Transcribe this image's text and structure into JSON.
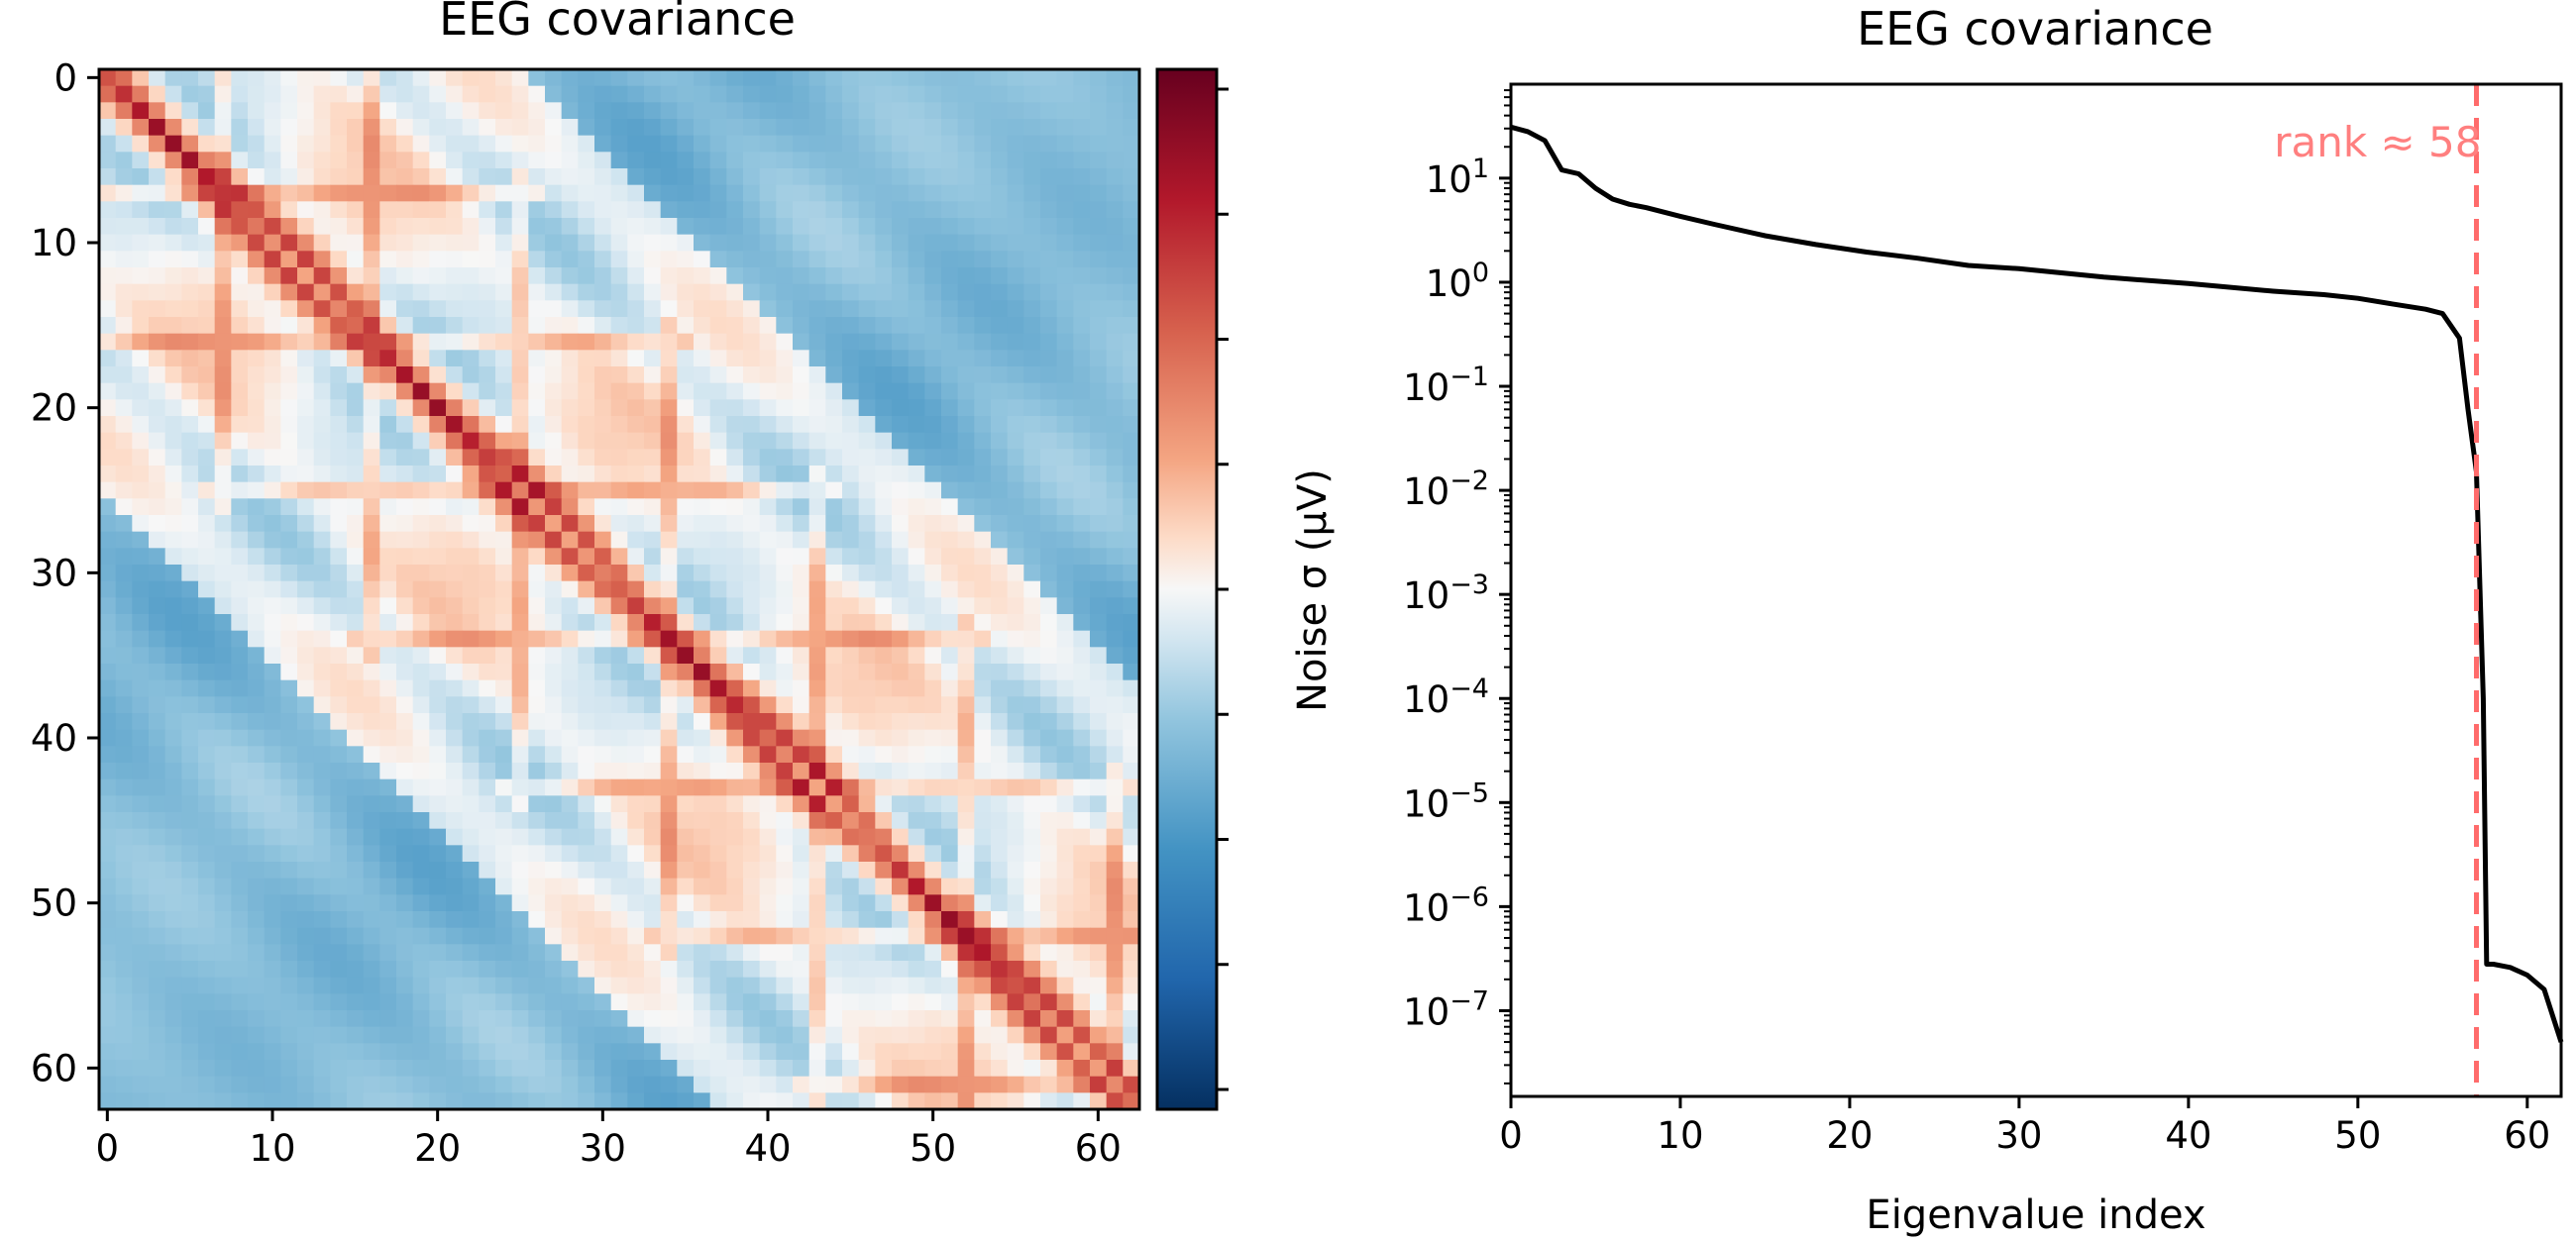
{
  "chart_data": [
    {
      "type": "heatmap",
      "title": "EEG covariance",
      "matrix_size": 63,
      "x_ticks": [
        "0",
        "10",
        "20",
        "30",
        "40",
        "50",
        "60"
      ],
      "y_ticks": [
        "0",
        "10",
        "20",
        "30",
        "40",
        "50",
        "60"
      ],
      "colormap": "RdBu_r",
      "colorbar": true,
      "colorbar_tick_count": 9,
      "colorbar_tick_labels": [],
      "colors": {
        "low": "#053061",
        "mid": "#f7f7f7",
        "high": "#67001f"
      }
    },
    {
      "type": "line",
      "title": "EEG covariance",
      "xlabel": "Eigenvalue index",
      "ylabel": "Noise σ (µV)",
      "yscale": "log",
      "xlim": [
        0,
        62
      ],
      "ylim": [
        1.5e-08,
        80
      ],
      "x_ticks": [
        0,
        10,
        20,
        30,
        40,
        50,
        60
      ],
      "y_ticks": [
        {
          "value": 10,
          "base": "10",
          "exp": "1"
        },
        {
          "value": 1,
          "base": "10",
          "exp": "0"
        },
        {
          "value": 0.1,
          "base": "10",
          "exp": "−1"
        },
        {
          "value": 0.01,
          "base": "10",
          "exp": "−2"
        },
        {
          "value": 0.001,
          "base": "10",
          "exp": "−3"
        },
        {
          "value": 0.0001,
          "base": "10",
          "exp": "−4"
        },
        {
          "value": 1e-05,
          "base": "10",
          "exp": "−5"
        },
        {
          "value": 1e-06,
          "base": "10",
          "exp": "−6"
        },
        {
          "value": 1e-07,
          "base": "10",
          "exp": "−7"
        }
      ],
      "series": [
        {
          "color": "#000000",
          "x": [
            0,
            1,
            2,
            3,
            4,
            5,
            6,
            7,
            8,
            10,
            12,
            15,
            18,
            21,
            24,
            27,
            30,
            35,
            40,
            45,
            48,
            50,
            52,
            54,
            55,
            56,
            56.5,
            57,
            57.4,
            57.6,
            58,
            59,
            60,
            61,
            62
          ],
          "y": [
            31,
            28,
            23,
            12,
            11,
            8,
            6.3,
            5.6,
            5.2,
            4.3,
            3.6,
            2.8,
            2.3,
            1.95,
            1.7,
            1.45,
            1.35,
            1.12,
            0.97,
            0.82,
            0.76,
            0.7,
            0.62,
            0.55,
            0.5,
            0.29,
            0.06,
            0.015,
            0.0001,
            2.8e-07,
            2.8e-07,
            2.6e-07,
            2.2e-07,
            1.6e-07,
            5e-08
          ]
        }
      ],
      "annotations": [
        {
          "type": "vline",
          "x": 57,
          "color": "#ff6b6b",
          "style": "dashed",
          "label": "rank ≈ 58",
          "label_color": "#ff7f7f"
        }
      ]
    }
  ]
}
